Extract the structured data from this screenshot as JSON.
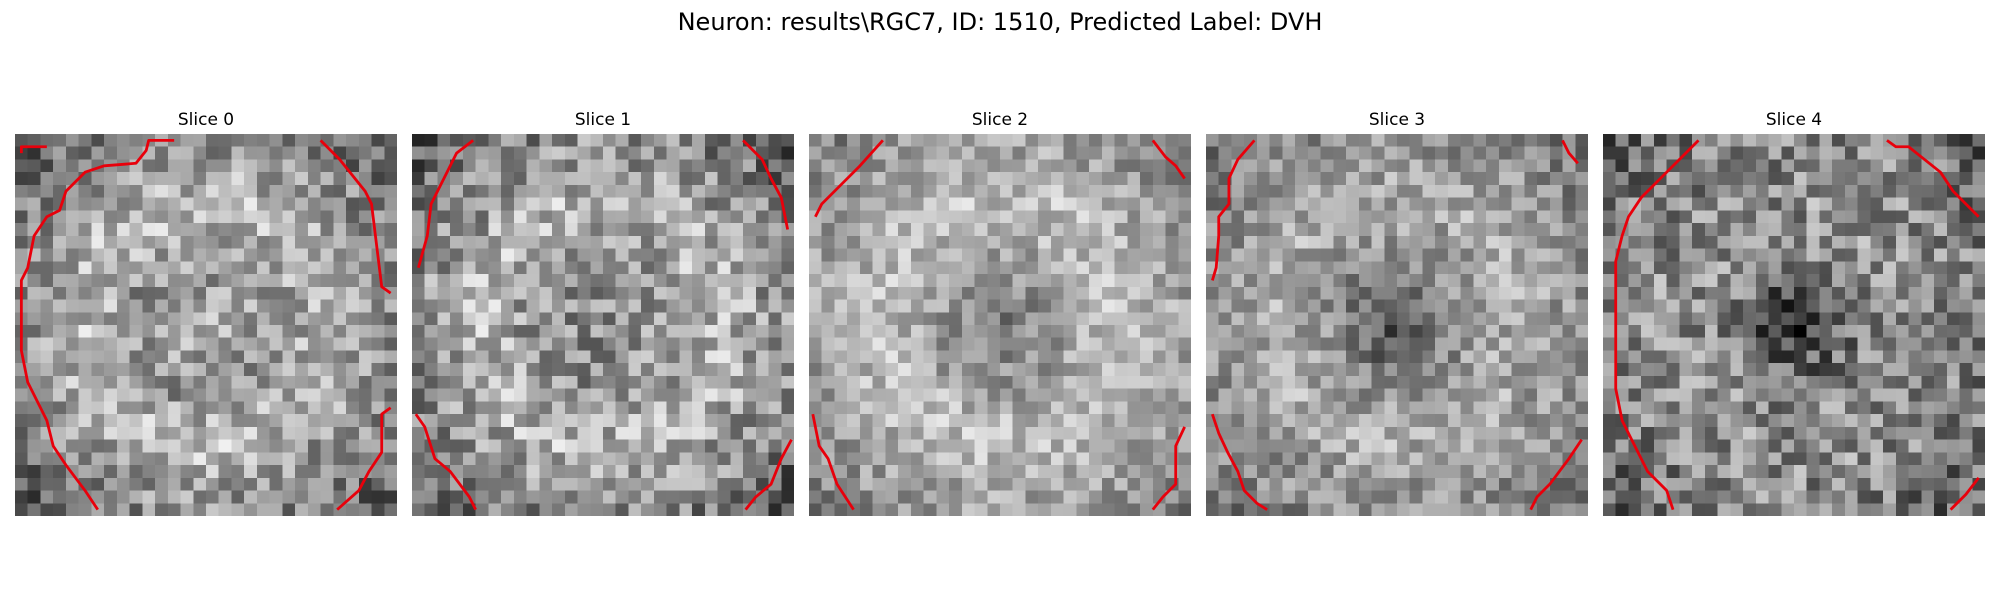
{
  "figure": {
    "title": "Neuron: results\\RGC7, ID: 1510, Predicted Label: DVH",
    "panels": [
      {
        "title": "Slice 0",
        "content": "grayscale-noise-image",
        "center": "bright",
        "contour_color": "#e8000b"
      },
      {
        "title": "Slice 1",
        "content": "grayscale-noise-image",
        "center": "mixed",
        "contour_color": "#e8000b"
      },
      {
        "title": "Slice 2",
        "content": "grayscale-noise-image",
        "center": "dark-spot",
        "contour_color": "#e8000b"
      },
      {
        "title": "Slice 3",
        "content": "grayscale-noise-image",
        "center": "dark-blob",
        "contour_color": "#e8000b"
      },
      {
        "title": "Slice 4",
        "content": "grayscale-noise-image",
        "center": "dark-blob",
        "contour_color": "#e8000b"
      }
    ]
  }
}
